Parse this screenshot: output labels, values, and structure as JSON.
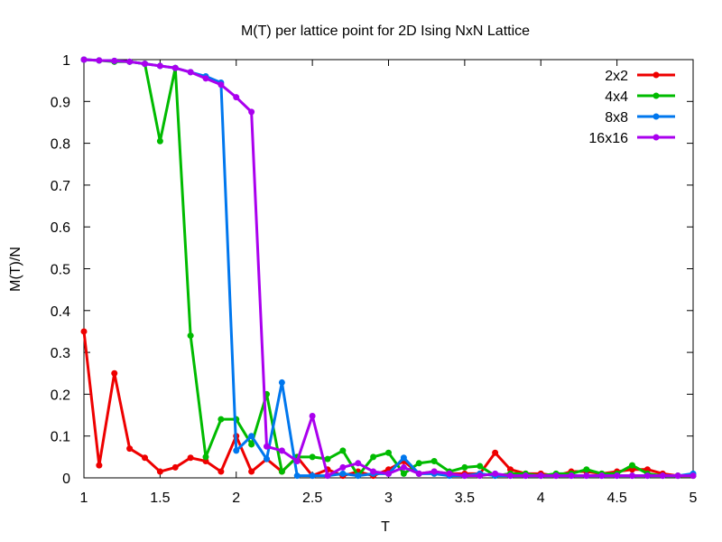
{
  "chart_data": {
    "type": "line",
    "title": "M(T) per lattice point for 2D Ising NxN Lattice",
    "xlabel": "T",
    "ylabel": "M(T)/N",
    "xlim": [
      1,
      5
    ],
    "ylim": [
      0,
      1
    ],
    "x_ticks": [
      "1",
      "1.5",
      "2",
      "2.5",
      "3",
      "3.5",
      "4",
      "4.5",
      "5"
    ],
    "y_ticks": [
      "0",
      "0.1",
      "0.2",
      "0.3",
      "0.4",
      "0.5",
      "0.6",
      "0.7",
      "0.8",
      "0.9",
      "1"
    ],
    "x_tick_values": [
      1,
      1.5,
      2,
      2.5,
      3,
      3.5,
      4,
      4.5,
      5
    ],
    "y_tick_values": [
      0,
      0.1,
      0.2,
      0.3,
      0.4,
      0.5,
      0.6,
      0.7,
      0.8,
      0.9,
      1
    ],
    "legend_position": "top-right",
    "grid": false,
    "x": [
      1.0,
      1.1,
      1.2,
      1.3,
      1.4,
      1.5,
      1.6,
      1.7,
      1.8,
      1.9,
      2.0,
      2.1,
      2.2,
      2.3,
      2.4,
      2.5,
      2.6,
      2.7,
      2.8,
      2.9,
      3.0,
      3.1,
      3.2,
      3.3,
      3.4,
      3.5,
      3.6,
      3.7,
      3.8,
      3.9,
      4.0,
      4.1,
      4.2,
      4.3,
      4.4,
      4.5,
      4.6,
      4.7,
      4.8,
      4.9,
      5.0
    ],
    "series": [
      {
        "name": "2x2",
        "color": "#ee0000",
        "values": [
          0.35,
          0.03,
          0.25,
          0.07,
          0.048,
          0.015,
          0.025,
          0.048,
          0.04,
          0.015,
          0.1,
          0.015,
          0.045,
          0.015,
          0.05,
          0.005,
          0.02,
          0.005,
          0.015,
          0.005,
          0.02,
          0.04,
          0.01,
          0.015,
          0.01,
          0.01,
          0.01,
          0.06,
          0.02,
          0.01,
          0.01,
          0.005,
          0.015,
          0.015,
          0.01,
          0.015,
          0.02,
          0.02,
          0.01,
          0.005,
          0.005
        ]
      },
      {
        "name": "4x4",
        "color": "#00bb00",
        "values": [
          1.0,
          0.998,
          0.995,
          0.995,
          0.99,
          0.805,
          0.98,
          0.34,
          0.05,
          0.14,
          0.14,
          0.08,
          0.2,
          0.015,
          0.05,
          0.05,
          0.045,
          0.065,
          0.005,
          0.05,
          0.06,
          0.01,
          0.035,
          0.04,
          0.015,
          0.025,
          0.028,
          0.005,
          0.01,
          0.01,
          0.005,
          0.01,
          0.01,
          0.02,
          0.01,
          0.01,
          0.03,
          0.01,
          0.005,
          0.005,
          0.005
        ]
      },
      {
        "name": "8x8",
        "color": "#0077ee",
        "values": [
          1.0,
          0.998,
          0.997,
          0.995,
          0.99,
          0.985,
          0.98,
          0.97,
          0.96,
          0.945,
          0.065,
          0.1,
          0.045,
          0.228,
          0.005,
          0.005,
          0.005,
          0.01,
          0.005,
          0.01,
          0.01,
          0.048,
          0.01,
          0.01,
          0.005,
          0.005,
          0.01,
          0.005,
          0.005,
          0.005,
          0.005,
          0.005,
          0.005,
          0.005,
          0.005,
          0.005,
          0.005,
          0.005,
          0.005,
          0.005,
          0.01
        ]
      },
      {
        "name": "16x16",
        "color": "#aa00ee",
        "values": [
          1.0,
          0.998,
          0.997,
          0.995,
          0.99,
          0.985,
          0.98,
          0.97,
          0.955,
          0.94,
          0.91,
          0.875,
          0.075,
          0.065,
          0.04,
          0.148,
          0.005,
          0.025,
          0.035,
          0.015,
          0.01,
          0.025,
          0.01,
          0.015,
          0.01,
          0.005,
          0.005,
          0.01,
          0.005,
          0.005,
          0.005,
          0.005,
          0.005,
          0.005,
          0.005,
          0.005,
          0.005,
          0.005,
          0.005,
          0.005,
          0.005
        ]
      }
    ]
  }
}
